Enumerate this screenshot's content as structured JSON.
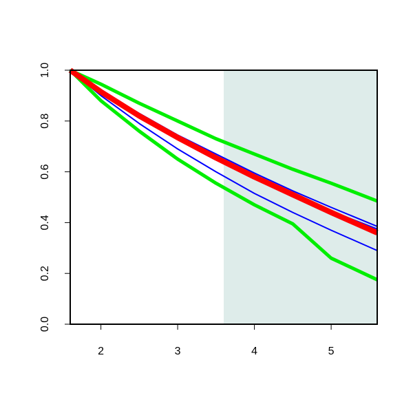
{
  "chart_data": {
    "type": "line",
    "x": [
      1.6,
      2,
      2.5,
      3,
      3.5,
      4,
      4.5,
      5,
      5.6
    ],
    "series": [
      {
        "color": "#0000ff",
        "width": 2,
        "values": [
          1.0,
          0.92,
          0.83,
          0.745,
          0.67,
          0.595,
          0.525,
          0.46,
          0.385
        ]
      },
      {
        "color": "#0000ff",
        "width": 2,
        "values": [
          1.0,
          0.915,
          0.825,
          0.74,
          0.66,
          0.585,
          0.515,
          0.445,
          0.375
        ]
      },
      {
        "color": "#0000ff",
        "width": 2,
        "values": [
          1.0,
          0.9,
          0.79,
          0.69,
          0.6,
          0.515,
          0.44,
          0.37,
          0.29
        ]
      },
      {
        "color": "#00ee00",
        "width": 5,
        "values": [
          1.0,
          0.945,
          0.87,
          0.8,
          0.73,
          0.67,
          0.61,
          0.555,
          0.485
        ]
      },
      {
        "color": "#00ee00",
        "width": 5,
        "values": [
          1.0,
          0.88,
          0.76,
          0.65,
          0.555,
          0.47,
          0.395,
          0.26,
          0.175
        ]
      },
      {
        "color": "#ff0000",
        "width": 8,
        "values": [
          1.0,
          0.915,
          0.82,
          0.735,
          0.655,
          0.58,
          0.51,
          0.44,
          0.36
        ]
      }
    ],
    "shade": {
      "x": [
        3.6,
        5.6
      ],
      "color": "#deecea"
    },
    "xlim": [
      1.6,
      5.6
    ],
    "ylim": [
      0,
      1
    ],
    "xticks": [
      2,
      3,
      4,
      5
    ],
    "yticks": [
      {
        "value": 0,
        "label": "0.0"
      },
      {
        "value": 0.2,
        "label": "0.2"
      },
      {
        "value": 0.4,
        "label": "0.4"
      },
      {
        "value": 0.6,
        "label": "0.6"
      },
      {
        "value": 0.8,
        "label": "0.8"
      },
      {
        "value": 1,
        "label": "1.0"
      }
    ],
    "grid": false
  }
}
